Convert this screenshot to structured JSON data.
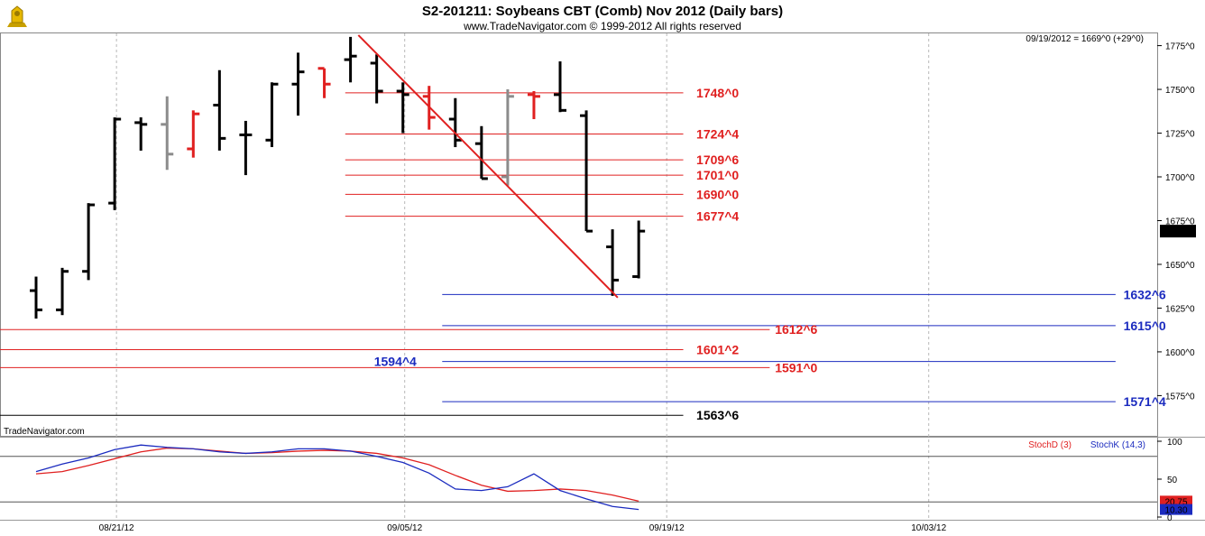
{
  "chart_data": {
    "type": "ohlc",
    "title": "S2-201211:  Soybeans CBT (Comb) Nov 2012  (Daily bars)",
    "subtitle": "www.TradeNavigator.com © 1999-2012 All rights reserved",
    "watermark": "TradeNavigator.com",
    "readout": "09/19/2012 = 1669^0 (+29^0)",
    "last_price_label": "1669^0",
    "price_axis": {
      "ylim": [
        1552,
        1782
      ],
      "ticks": [
        {
          "value": 1775,
          "label": "1775^0"
        },
        {
          "value": 1750,
          "label": "1750^0"
        },
        {
          "value": 1725,
          "label": "1725^0"
        },
        {
          "value": 1700,
          "label": "1700^0"
        },
        {
          "value": 1675,
          "label": "1675^0"
        },
        {
          "value": 1650,
          "label": "1650^0"
        },
        {
          "value": 1625,
          "label": "1625^0"
        },
        {
          "value": 1600,
          "label": "1600^0"
        },
        {
          "value": 1575,
          "label": "1575^0"
        }
      ]
    },
    "date_axis": {
      "labels": [
        {
          "bar": 3,
          "label": "08/21/12"
        },
        {
          "bar": 14,
          "label": "09/05/12"
        },
        {
          "bar": 24,
          "label": "09/19/12"
        },
        {
          "bar": 34,
          "label": "10/03/12"
        }
      ]
    },
    "bars": [
      {
        "bar": 0,
        "open": 1635,
        "high": 1643,
        "low": 1619,
        "close": 1624,
        "color": "black"
      },
      {
        "bar": 1,
        "open": 1624,
        "high": 1648,
        "low": 1621,
        "close": 1646,
        "color": "black"
      },
      {
        "bar": 2,
        "open": 1646,
        "high": 1685,
        "low": 1641,
        "close": 1684,
        "color": "black"
      },
      {
        "bar": 3,
        "open": 1685,
        "high": 1734,
        "low": 1681,
        "close": 1733,
        "color": "black"
      },
      {
        "bar": 4,
        "open": 1731,
        "high": 1734,
        "low": 1715,
        "close": 1730,
        "color": "black"
      },
      {
        "bar": 5,
        "open": 1730,
        "high": 1746,
        "low": 1704,
        "close": 1713,
        "color": "gray"
      },
      {
        "bar": 6,
        "open": 1716,
        "high": 1738,
        "low": 1711,
        "close": 1736,
        "color": "red"
      },
      {
        "bar": 7,
        "open": 1741,
        "high": 1761,
        "low": 1715,
        "close": 1722,
        "color": "black"
      },
      {
        "bar": 8,
        "open": 1724,
        "high": 1732,
        "low": 1701,
        "close": 1724,
        "color": "black"
      },
      {
        "bar": 9,
        "open": 1721,
        "high": 1754,
        "low": 1717,
        "close": 1753,
        "color": "black"
      },
      {
        "bar": 10,
        "open": 1753,
        "high": 1771,
        "low": 1735,
        "close": 1760,
        "color": "black"
      },
      {
        "bar": 11,
        "open": 1762,
        "high": 1762,
        "low": 1745,
        "close": 1753,
        "color": "red"
      },
      {
        "bar": 12,
        "open": 1767,
        "high": 1780,
        "low": 1754,
        "close": 1769,
        "color": "black"
      },
      {
        "bar": 13,
        "open": 1765,
        "high": 1770,
        "low": 1742,
        "close": 1749,
        "color": "black"
      },
      {
        "bar": 14,
        "open": 1749,
        "high": 1754,
        "low": 1725,
        "close": 1747,
        "color": "black"
      },
      {
        "bar": 15,
        "open": 1746,
        "high": 1752,
        "low": 1727,
        "close": 1734,
        "color": "red"
      },
      {
        "bar": 16,
        "open": 1733,
        "high": 1745,
        "low": 1717,
        "close": 1721,
        "color": "black"
      },
      {
        "bar": 17,
        "open": 1719,
        "high": 1729,
        "low": 1699,
        "close": 1699,
        "color": "black"
      },
      {
        "bar": 18,
        "open": 1700,
        "high": 1750,
        "low": 1695,
        "close": 1746,
        "color": "gray"
      },
      {
        "bar": 19,
        "open": 1747,
        "high": 1749,
        "low": 1733,
        "close": 1746,
        "color": "red"
      },
      {
        "bar": 20,
        "open": 1747,
        "high": 1766,
        "low": 1737,
        "close": 1738,
        "color": "black"
      },
      {
        "bar": 21,
        "open": 1735,
        "high": 1738,
        "low": 1669,
        "close": 1669,
        "color": "black"
      },
      {
        "bar": 22,
        "open": 1660,
        "high": 1670,
        "low": 1632,
        "close": 1641,
        "color": "black"
      },
      {
        "bar": 23,
        "open": 1643,
        "high": 1675,
        "low": 1642,
        "close": 1669,
        "color": "black"
      }
    ],
    "trendline": {
      "from": {
        "bar": 12.3,
        "price": 1781
      },
      "to": {
        "bar": 22.2,
        "price": 1631
      }
    },
    "levels": [
      {
        "price": 1748,
        "label": "1748^0",
        "color": "#e02020",
        "from_bar": 11.8,
        "to_bar": 24.7,
        "label_bar": 25.2
      },
      {
        "price": 1724.5,
        "label": "1724^4",
        "color": "#e02020",
        "from_bar": 11.8,
        "to_bar": 24.7,
        "label_bar": 25.2
      },
      {
        "price": 1709.75,
        "label": "1709^6",
        "color": "#e02020",
        "from_bar": 11.8,
        "to_bar": 24.7,
        "label_bar": 25.2
      },
      {
        "price": 1701,
        "label": "1701^0",
        "color": "#e02020",
        "from_bar": 11.8,
        "to_bar": 24.7,
        "label_bar": 25.2
      },
      {
        "price": 1690,
        "label": "1690^0",
        "color": "#e02020",
        "from_bar": 11.8,
        "to_bar": 24.7,
        "label_bar": 25.2
      },
      {
        "price": 1677.5,
        "label": "1677^4",
        "color": "#e02020",
        "from_bar": 11.8,
        "to_bar": 24.7,
        "label_bar": 25.2
      },
      {
        "price": 1632.75,
        "label": "1632^6",
        "color": "#1b2bbf",
        "from_bar": 15.5,
        "to_bar": 41.2,
        "label_bar": 41.5
      },
      {
        "price": 1615,
        "label": "1615^0",
        "color": "#1b2bbf",
        "from_bar": 15.5,
        "to_bar": 41.2,
        "label_bar": 41.5
      },
      {
        "price": 1612.75,
        "label": "1612^6",
        "color": "#e02020",
        "from_bar": -1.4,
        "to_bar": 28.0,
        "label_bar": 28.2
      },
      {
        "price": 1601.25,
        "label": "1601^2",
        "color": "#e02020",
        "from_bar": -1.4,
        "to_bar": 24.7,
        "label_bar": 25.2
      },
      {
        "price": 1594.5,
        "label": "1594^4",
        "color": "#1b2bbf",
        "from_bar": 15.5,
        "to_bar": 41.2,
        "label_bar": 12.9
      },
      {
        "price": 1591,
        "label": "1591^0",
        "color": "#e02020",
        "from_bar": -1.4,
        "to_bar": 28.0,
        "label_bar": 28.2
      },
      {
        "price": 1571.5,
        "label": "1571^4",
        "color": "#1b2bbf",
        "from_bar": 15.5,
        "to_bar": 41.2,
        "label_bar": 41.5
      },
      {
        "price": 1563.75,
        "label": "1563^6",
        "color": "#000000",
        "from_bar": -1.4,
        "to_bar": 24.7,
        "label_bar": 25.2
      }
    ],
    "stochastic": {
      "ylim": [
        0,
        100
      ],
      "ticks": [
        {
          "value": 100,
          "label": "100"
        },
        {
          "value": 50,
          "label": "50"
        },
        {
          "value": 0,
          "label": "0"
        }
      ],
      "ref_lines": [
        80,
        20
      ],
      "stochD": {
        "name": "StochD (3)",
        "color": "#e02020",
        "last_label": "20.75",
        "x": [
          0,
          1,
          2,
          3,
          4,
          5,
          6,
          7,
          8,
          9,
          10,
          11,
          12,
          13,
          14,
          15,
          16,
          17,
          18,
          19,
          20,
          21,
          22,
          23
        ],
        "values": [
          57,
          60,
          68,
          77,
          86,
          91,
          90,
          87,
          84,
          85,
          87,
          88,
          87,
          84,
          78,
          69,
          55,
          42,
          34,
          35,
          37,
          35,
          29,
          21
        ]
      },
      "stochK": {
        "name": "StochK (14,3)",
        "color": "#1b2bbf",
        "last_label": "10.30",
        "x": [
          0,
          1,
          2,
          3,
          4,
          5,
          6,
          7,
          8,
          9,
          10,
          11,
          12,
          13,
          14,
          15,
          16,
          17,
          18,
          19,
          20,
          21,
          22,
          23
        ],
        "values": [
          60,
          70,
          78,
          89,
          95,
          92,
          90,
          86,
          84,
          86,
          90,
          90,
          87,
          80,
          72,
          58,
          37,
          35,
          40,
          57,
          35,
          24,
          14,
          10
        ]
      }
    }
  }
}
